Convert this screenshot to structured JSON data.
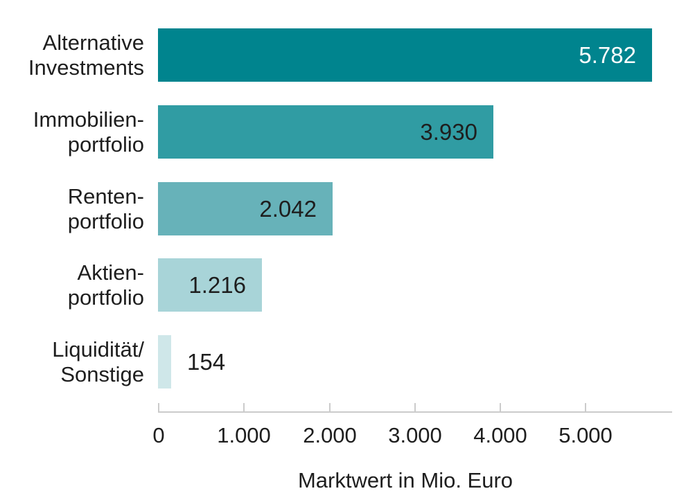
{
  "chart_data": {
    "type": "bar",
    "orientation": "horizontal",
    "title": "",
    "xlabel": "Marktwert in Mio. Euro",
    "ylabel": "",
    "categories": [
      "Alternative\nInvestments",
      "Immobilien-\nportfolio",
      "Renten-\nportfolio",
      "Aktien-\nportfolio",
      "Liquidität/\nSonstige"
    ],
    "values": [
      5782,
      3930,
      2042,
      1216,
      154
    ],
    "value_labels": [
      "5.782",
      "3.930",
      "2.042",
      "1.216",
      "154"
    ],
    "bar_colors": [
      "#00848E",
      "#309CA3",
      "#67B2B9",
      "#A8D4D8",
      "#CFE7E9"
    ],
    "value_label_colors": [
      "#ffffff",
      "#1e1e1e",
      "#1e1e1e",
      "#1e1e1e",
      "#1e1e1e"
    ],
    "value_label_inside": [
      true,
      true,
      true,
      true,
      false
    ],
    "xlim": [
      0,
      6020
    ],
    "x_ticks": [
      0,
      1000,
      2000,
      3000,
      4000,
      5000
    ],
    "x_tick_labels": [
      "0",
      "1.000",
      "2.000",
      "3.000",
      "4.000",
      "5.000"
    ],
    "grid": false,
    "legend": false,
    "axis_color": "#cbcbcb",
    "text_color": "#1e1e1e",
    "background_color": "#ffffff"
  }
}
